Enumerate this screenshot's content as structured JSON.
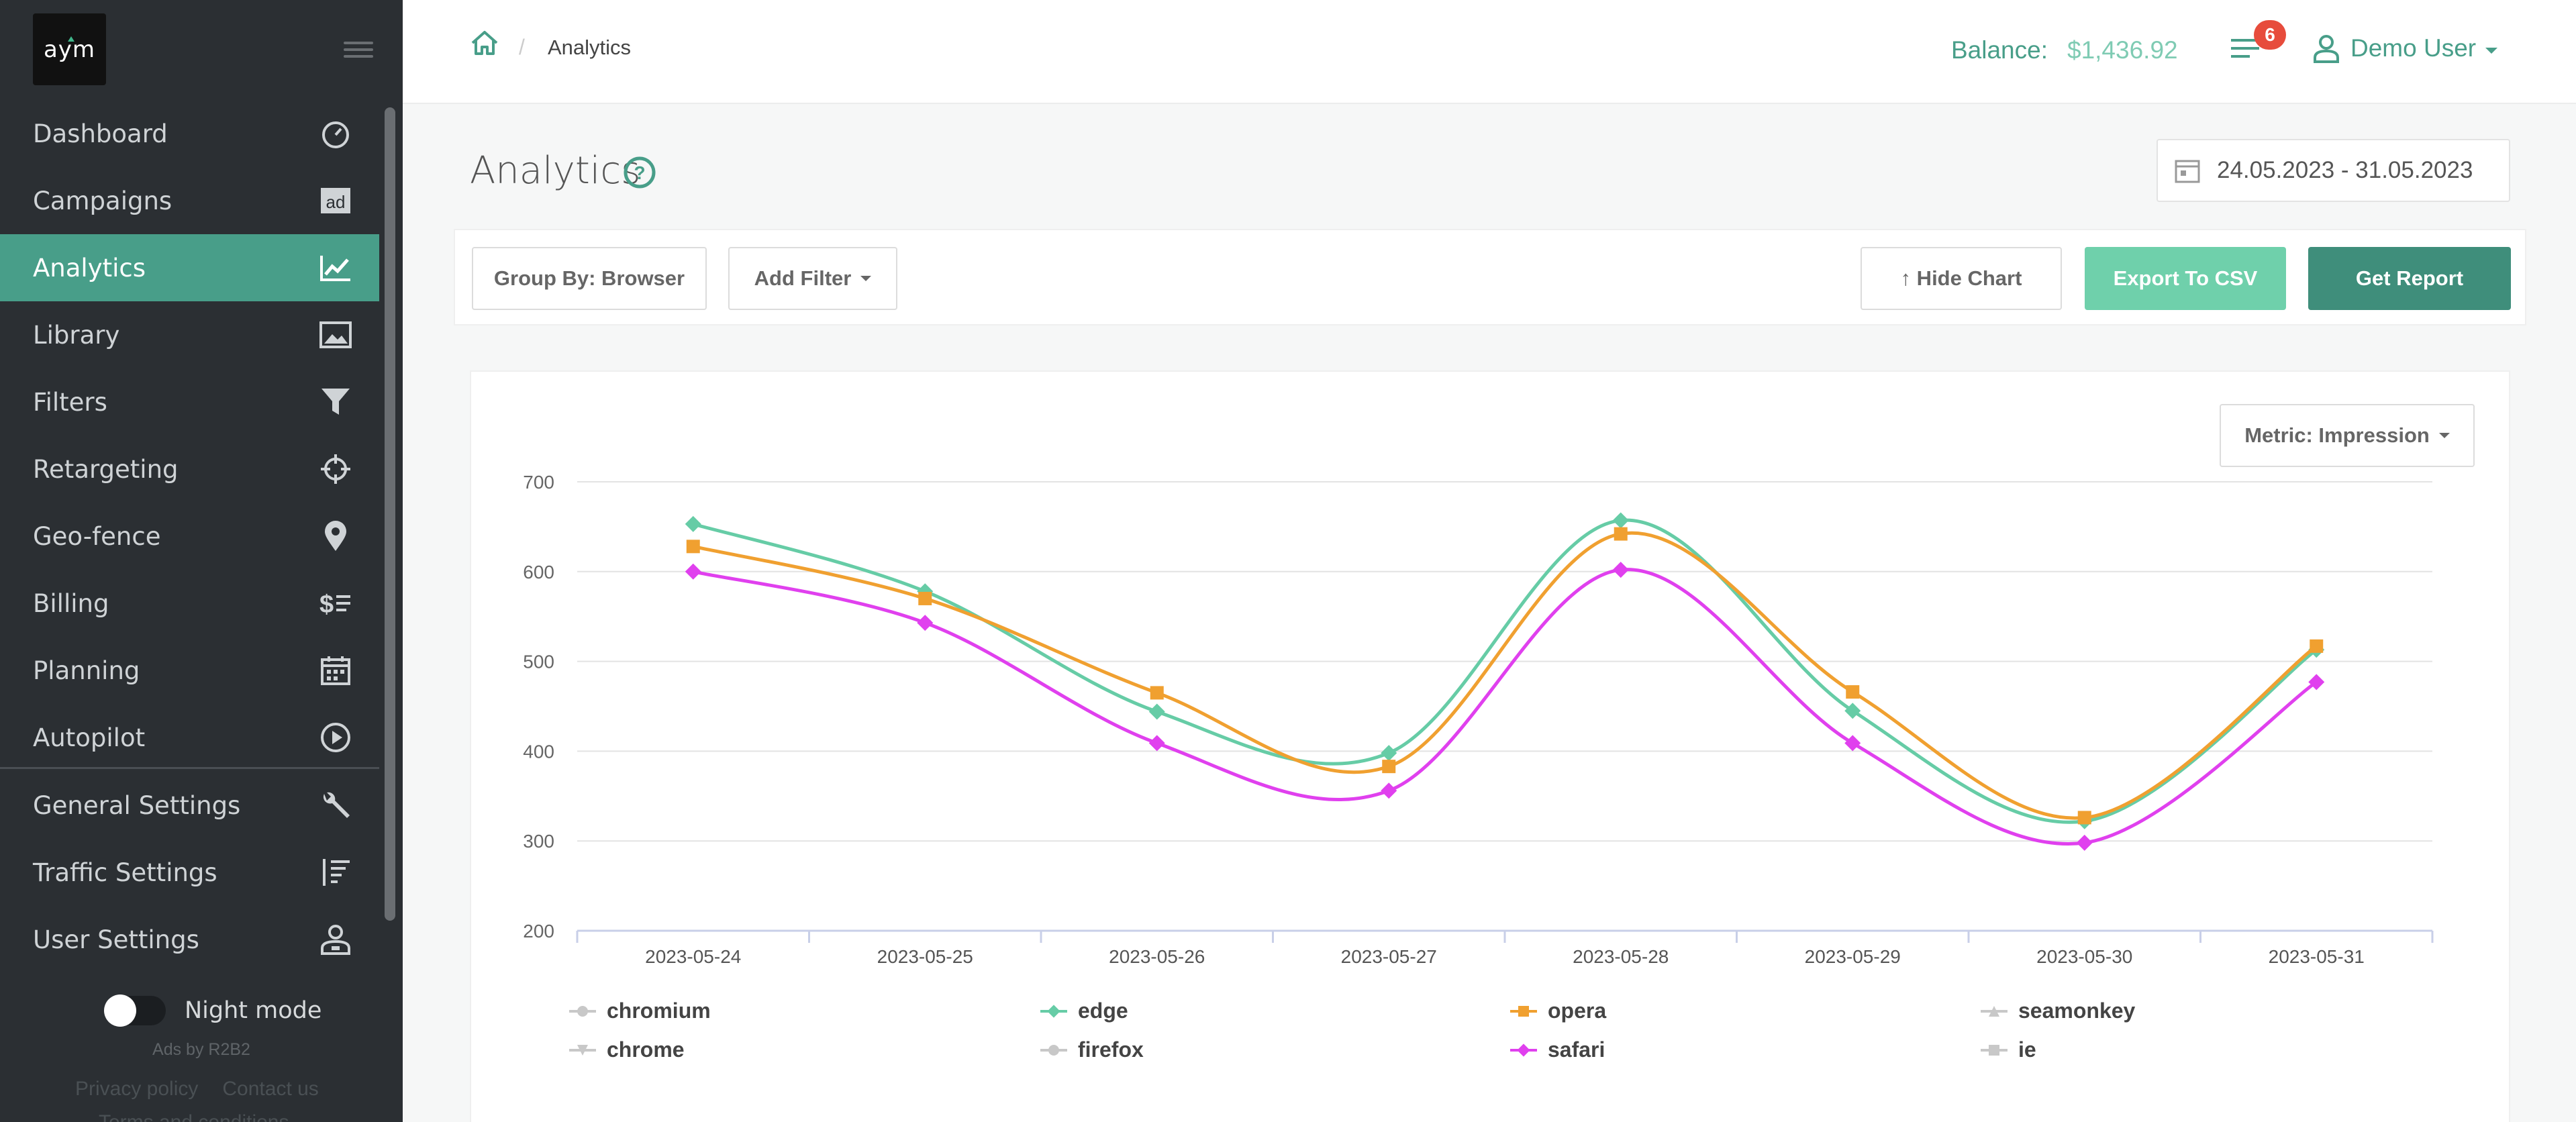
{
  "app": {
    "logo_text": "aym"
  },
  "sidebar": {
    "items": [
      {
        "label": "Dashboard",
        "icon": "gauge-icon"
      },
      {
        "label": "Campaigns",
        "icon": "ad-icon"
      },
      {
        "label": "Analytics",
        "icon": "chart-icon",
        "active": true
      },
      {
        "label": "Library",
        "icon": "image-icon"
      },
      {
        "label": "Filters",
        "icon": "funnel-icon"
      },
      {
        "label": "Retargeting",
        "icon": "crosshair-icon"
      },
      {
        "label": "Geo-fence",
        "icon": "map-pin-icon"
      },
      {
        "label": "Billing",
        "icon": "dollar-list-icon"
      },
      {
        "label": "Planning",
        "icon": "calendar-icon"
      },
      {
        "label": "Autopilot",
        "icon": "play-circle-icon"
      }
    ],
    "settings": [
      {
        "label": "General Settings",
        "icon": "wrench-icon"
      },
      {
        "label": "Traffic Settings",
        "icon": "sort-icon"
      },
      {
        "label": "User Settings",
        "icon": "user-cog-icon"
      }
    ],
    "night_mode_label": "Night mode",
    "ads_text": "Ads by R2B2",
    "privacy_label": "Privacy policy",
    "contact_label": "Contact us",
    "terms_label": "Terms and conditions"
  },
  "header": {
    "breadcrumb": "Analytics",
    "balance_label": "Balance:",
    "balance_value": "$1,436.92",
    "notification_count": "6",
    "user_name": "Demo User"
  },
  "page": {
    "title": "Analytics",
    "date_range": "24.05.2023 - 31.05.2023"
  },
  "toolbar": {
    "group_by_label": "Group By: Browser",
    "add_filter_label": "Add Filter",
    "hide_chart_label": "↑ Hide Chart",
    "export_label": "Export To CSV",
    "report_label": "Get Report"
  },
  "metric_label": "Metric: Impression",
  "colors": {
    "accent": "#489e89",
    "edge": "#66cca6",
    "opera": "#f0a030",
    "safari": "#e040ee",
    "inactive": "#c8c8c8"
  },
  "chart_data": {
    "type": "line",
    "x": [
      "2023-05-24",
      "2023-05-25",
      "2023-05-26",
      "2023-05-27",
      "2023-05-28",
      "2023-05-29",
      "2023-05-30",
      "2023-05-31"
    ],
    "ylim": [
      200,
      700
    ],
    "yticks": [
      700,
      600,
      500,
      400,
      300,
      200
    ],
    "grid": true,
    "legend_position": "bottom",
    "series": [
      {
        "name": "edge",
        "color": "#66cca6",
        "marker": "diamond",
        "values": [
          653,
          578,
          444,
          398,
          657,
          445,
          322,
          513
        ]
      },
      {
        "name": "opera",
        "color": "#f0a030",
        "marker": "square",
        "values": [
          628,
          570,
          465,
          383,
          642,
          466,
          326,
          517
        ]
      },
      {
        "name": "safari",
        "color": "#e040ee",
        "marker": "diamond",
        "values": [
          600,
          543,
          409,
          356,
          602,
          409,
          298,
          477
        ]
      }
    ],
    "legend": [
      {
        "name": "chromium",
        "marker": "circle",
        "active": false
      },
      {
        "name": "edge",
        "marker": "diamond",
        "active": true
      },
      {
        "name": "opera",
        "marker": "square",
        "active": true
      },
      {
        "name": "seamonkey",
        "marker": "triangle",
        "active": false
      },
      {
        "name": "chrome",
        "marker": "triangle-down",
        "active": false
      },
      {
        "name": "firefox",
        "marker": "circle",
        "active": false
      },
      {
        "name": "safari",
        "marker": "diamond",
        "active": true
      },
      {
        "name": "ie",
        "marker": "square",
        "active": false
      }
    ]
  }
}
